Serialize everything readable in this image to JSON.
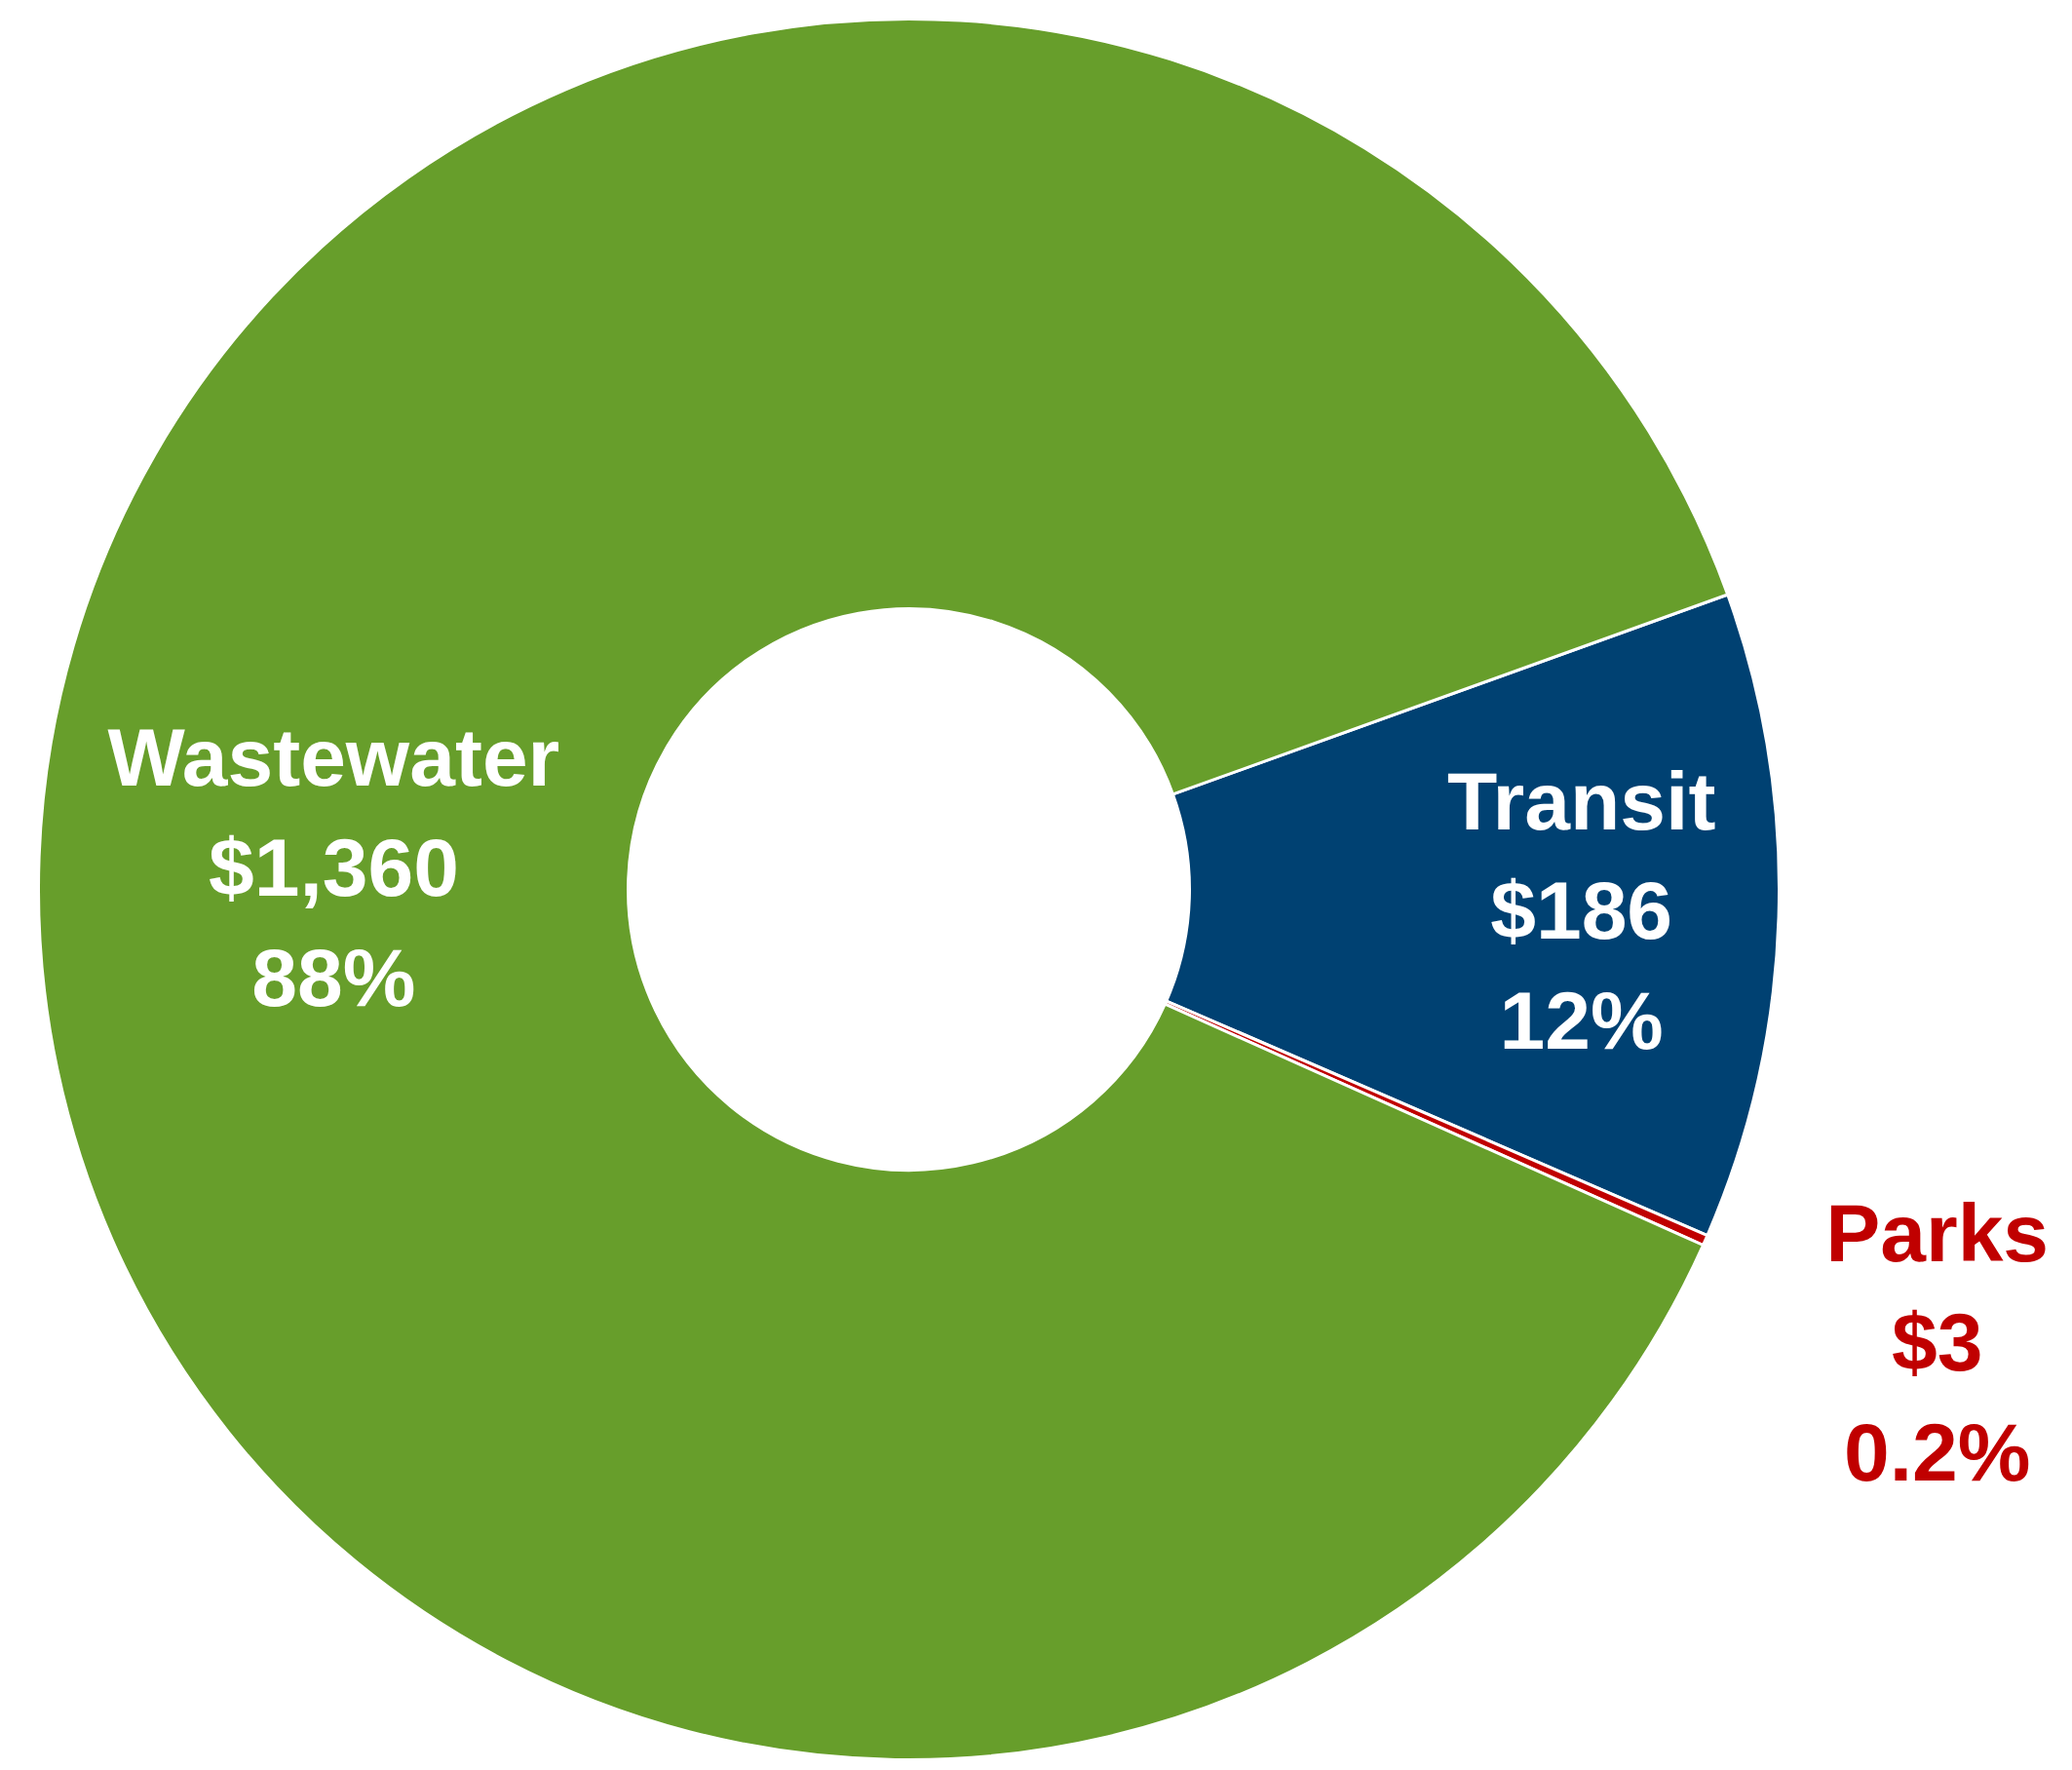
{
  "chart_data": {
    "type": "donut",
    "categories": [
      "Transit",
      "Parks",
      "Wastewater"
    ],
    "values": [
      186,
      3,
      1360
    ],
    "colors": [
      "#004172",
      "#c00000",
      "#679e2b"
    ],
    "value_labels": [
      "$186\n12%",
      "$3\n0.2%",
      "$1,360\n88%"
    ]
  }
}
